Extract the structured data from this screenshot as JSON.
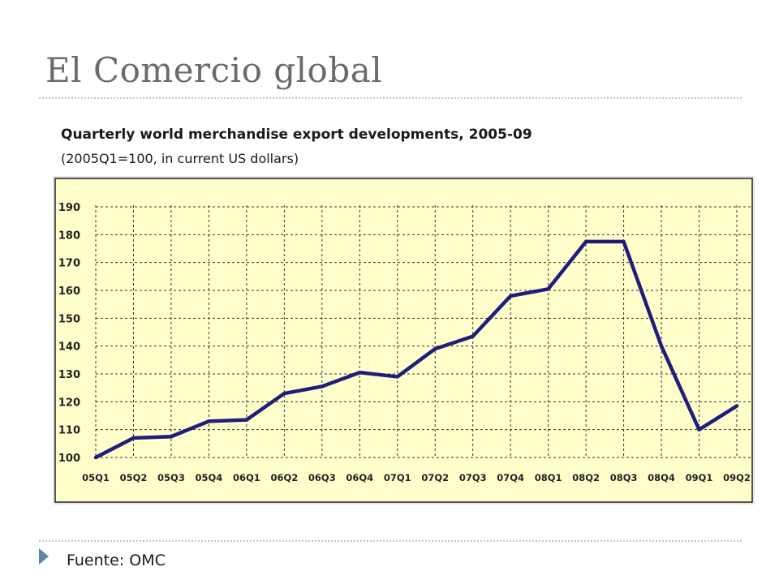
{
  "slide": {
    "title": "El Comercio global",
    "source": "Fuente:  OMC"
  },
  "chart_data": {
    "type": "line",
    "title": "Quarterly world merchandise export developments, 2005-09",
    "subtitle": "(2005Q1=100, in current US dollars)",
    "categories": [
      "05Q1",
      "05Q2",
      "05Q3",
      "05Q4",
      "06Q1",
      "06Q2",
      "06Q3",
      "06Q4",
      "07Q1",
      "07Q2",
      "07Q3",
      "07Q4",
      "08Q1",
      "08Q2",
      "08Q3",
      "08Q4",
      "09Q1",
      "09Q2"
    ],
    "values": [
      100,
      107,
      107.5,
      113,
      113.5,
      123,
      125.5,
      130.5,
      129,
      139,
      143.5,
      158,
      160.5,
      177.5,
      177.5,
      140,
      110,
      118.5
    ],
    "yticks": [
      100,
      110,
      120,
      130,
      140,
      150,
      160,
      170,
      180,
      190
    ],
    "ylim": [
      100,
      190
    ],
    "grid": true,
    "colors": {
      "plot_background": "#ffffcc",
      "frame_background": "#e6e6e6",
      "line": "#1f1f7a",
      "grid": "#333333"
    }
  }
}
